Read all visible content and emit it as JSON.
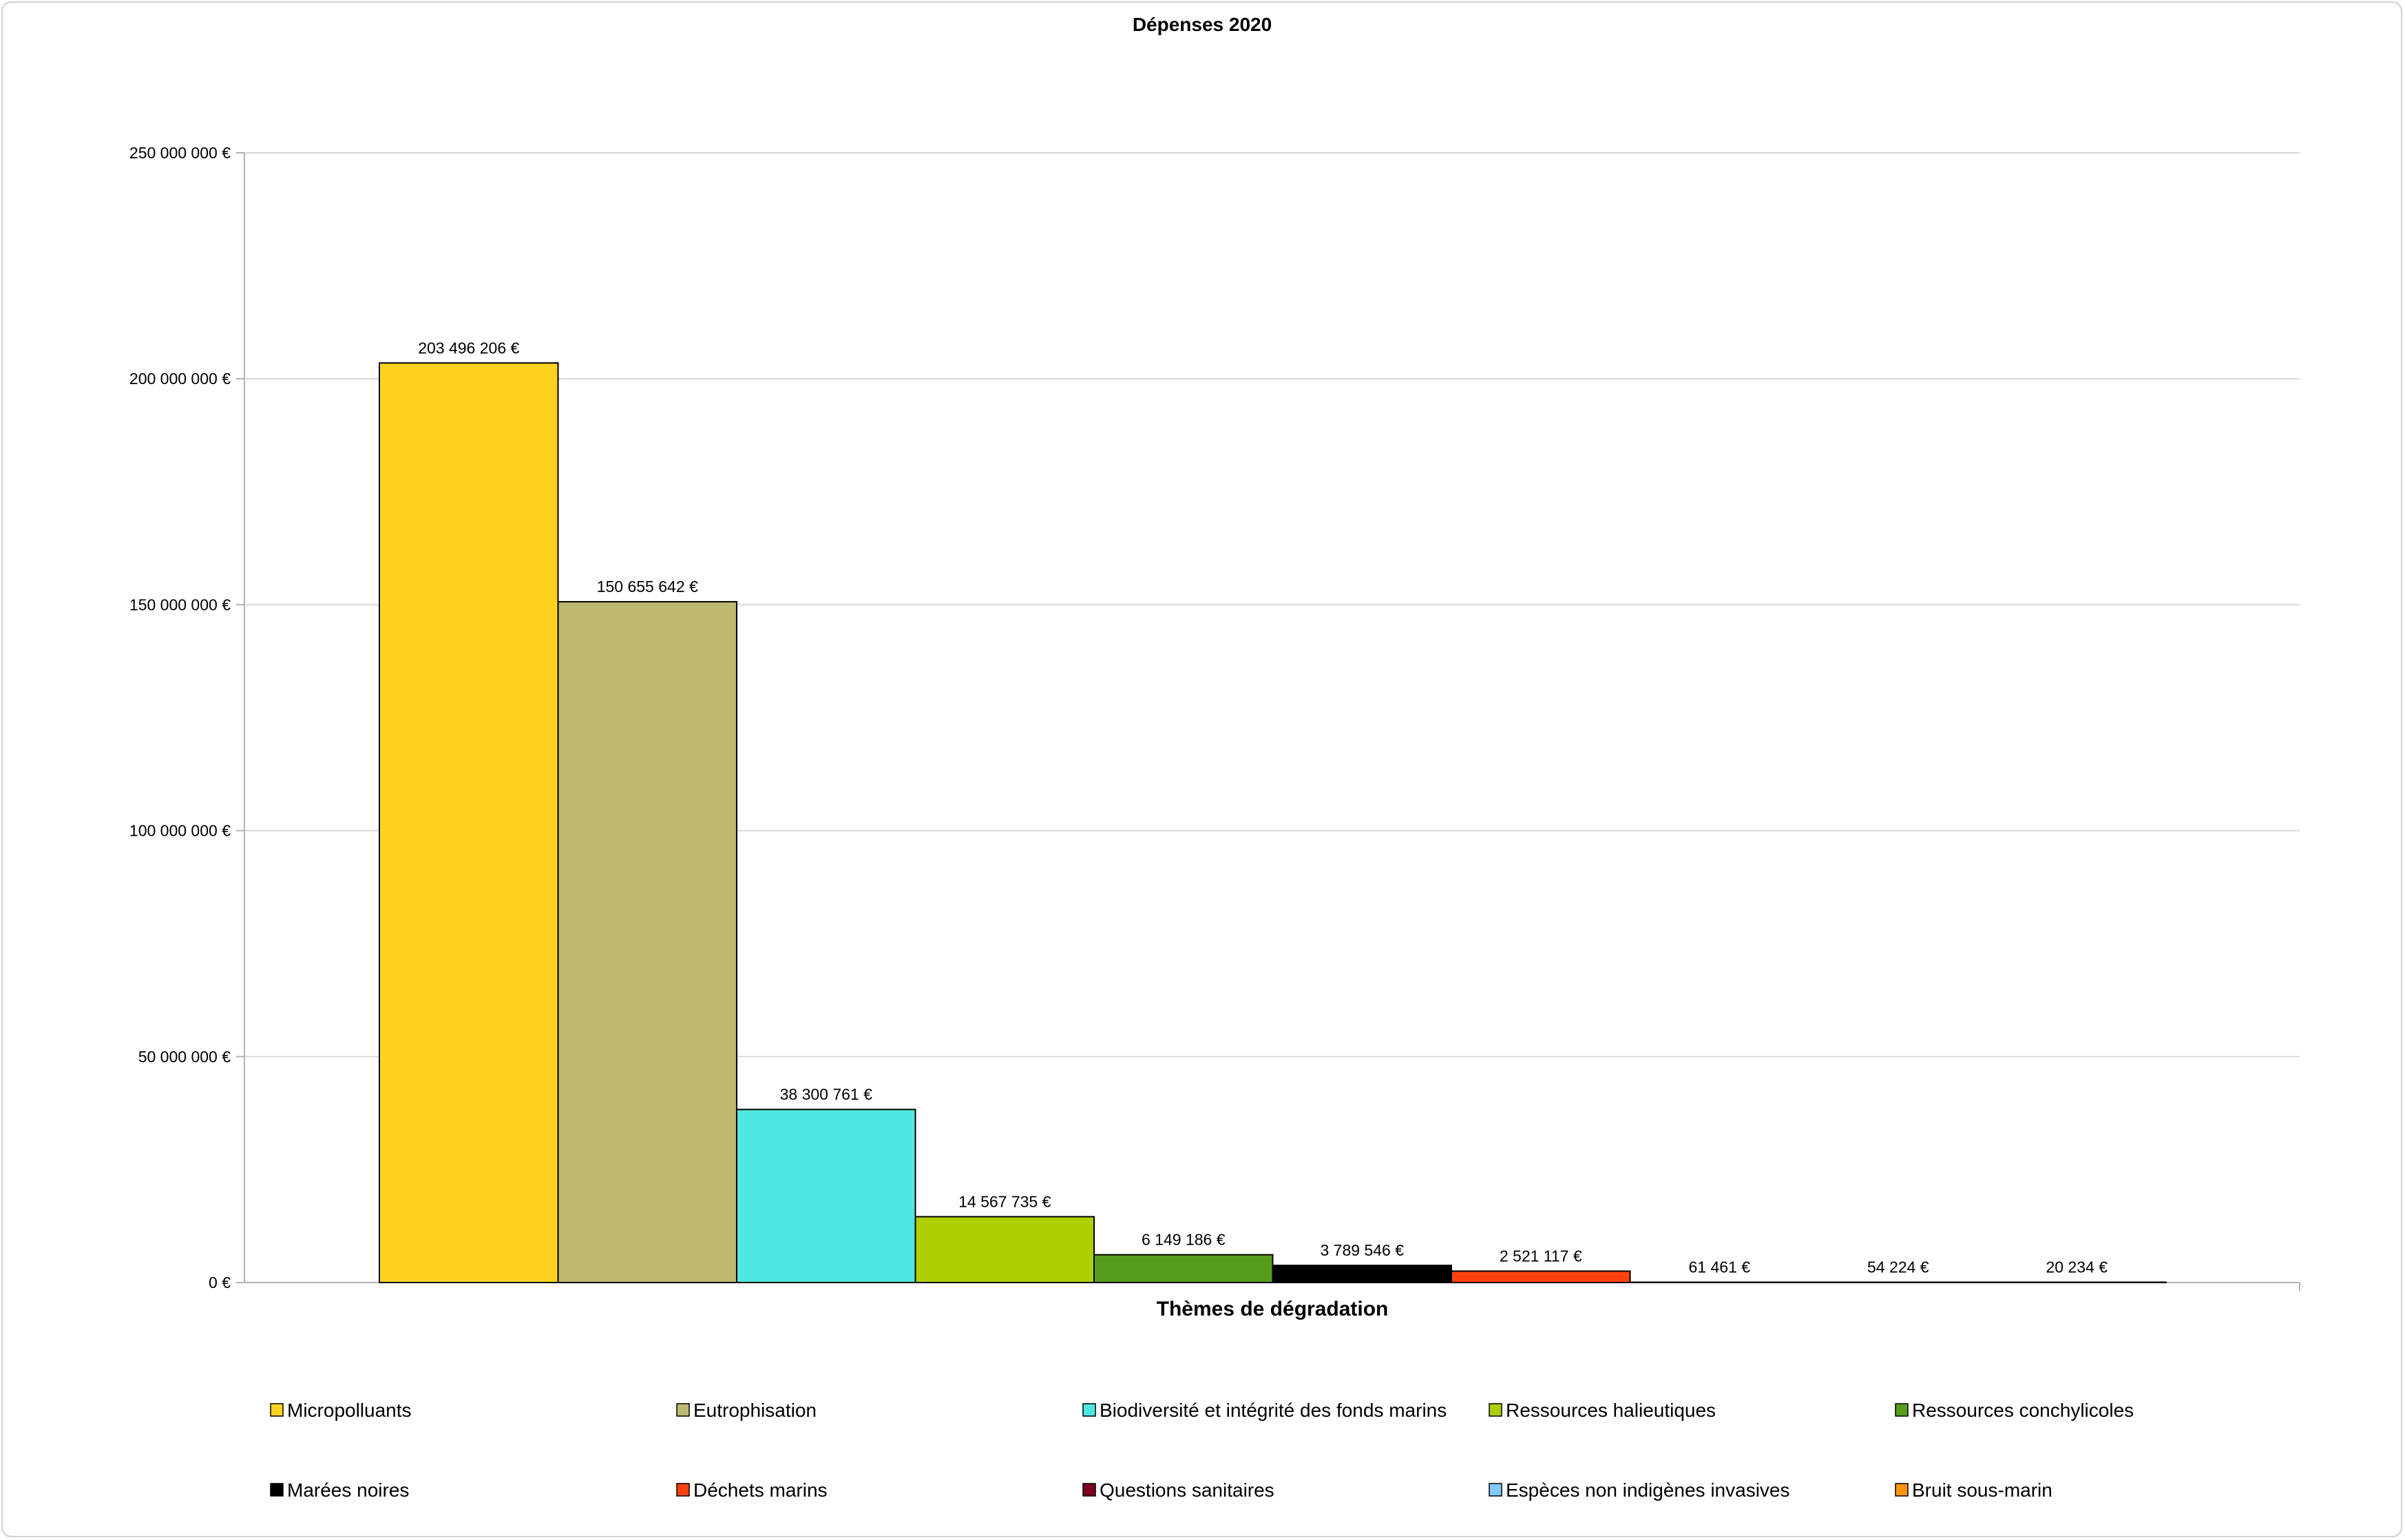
{
  "chart_data": {
    "type": "bar",
    "title": "Dépenses 2020",
    "xlabel": "Thèmes de dégradation",
    "ylabel": "",
    "ylim": [
      0,
      250000000
    ],
    "yticks": [
      0,
      50000000,
      100000000,
      150000000,
      200000000,
      250000000
    ],
    "ytick_labels": [
      "0 €",
      "50 000 000 €",
      "100 000 000 €",
      "150 000 000 €",
      "200 000 000 €",
      "250 000 000 €"
    ],
    "grid": true,
    "legend_position": "bottom",
    "series": [
      {
        "name": "Micropolluants",
        "value": 203496206,
        "label": "203 496 206 €",
        "color": "#FFD320"
      },
      {
        "name": "Eutrophisation",
        "value": 150655642,
        "label": "150 655 642 €",
        "color": "#BFB86F"
      },
      {
        "name": "Biodiversité et intégrité des fonds marins",
        "value": 38300761,
        "label": "38 300 761 €",
        "color": "#4FE8E0"
      },
      {
        "name": "Ressources halieutiques",
        "value": 14567735,
        "label": "14 567 735 €",
        "color": "#AECF00"
      },
      {
        "name": "Ressources conchylicoles",
        "value": 6149186,
        "label": "6 149 186 €",
        "color": "#579D1C"
      },
      {
        "name": "Marées noires",
        "value": 3789546,
        "label": "3 789 546 €",
        "color": "#000000"
      },
      {
        "name": "Déchets marins",
        "value": 2521117,
        "label": "2 521 117 €",
        "color": "#FF420E"
      },
      {
        "name": "Questions sanitaires",
        "value": 61461,
        "label": "61 461 €",
        "color": "#7E0021"
      },
      {
        "name": "Espèces non indigènes invasives",
        "value": 54224,
        "label": "54 224 €",
        "color": "#83CAFF"
      },
      {
        "name": "Bruit sous-marin",
        "value": 20234,
        "label": "20 234 €",
        "color": "#FF950E"
      }
    ]
  }
}
